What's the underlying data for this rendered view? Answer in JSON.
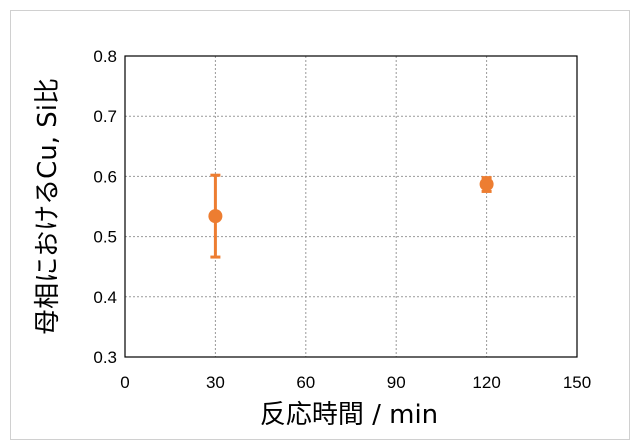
{
  "chart_data": {
    "type": "scatter",
    "xlabel": "反応時間 / min",
    "ylabel": "母相におけるCu, Si比",
    "xlim": [
      0,
      150
    ],
    "ylim": [
      0.3,
      0.8
    ],
    "x_ticks": [
      "0",
      "30",
      "60",
      "90",
      "120",
      "150"
    ],
    "y_ticks": [
      "0.3",
      "0.4",
      "0.5",
      "0.6",
      "0.7",
      "0.8"
    ],
    "grid": true,
    "series": [
      {
        "color": "#ED7D31",
        "points": [
          {
            "x": 30,
            "y": 0.534,
            "err_low": 0.466,
            "err_high": 0.602
          },
          {
            "x": 120,
            "y": 0.587,
            "err_low": 0.575,
            "err_high": 0.598
          }
        ]
      }
    ]
  }
}
